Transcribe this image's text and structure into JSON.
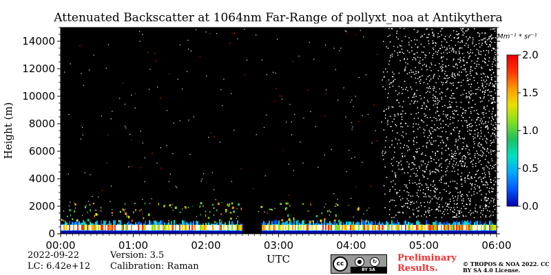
{
  "chart_data": {
    "type": "heatmap",
    "title": "Attenuated Backscatter at 1064nm Far-Range of pollyxt_noa at Antikythera",
    "xlabel": "UTC",
    "ylabel": "Height (m)",
    "x_ticks": [
      "00:00",
      "01:00",
      "02:00",
      "03:00",
      "04:00",
      "05:00",
      "06:00"
    ],
    "x_range_hours": [
      0,
      6
    ],
    "y_ticks": [
      0,
      2000,
      4000,
      6000,
      8000,
      10000,
      12000,
      14000
    ],
    "ylim": [
      0,
      15000
    ],
    "colorbar": {
      "unit": "Mm⁻¹ * sr⁻¹",
      "ticks": [
        "0.0",
        "0.5",
        "1.0",
        "1.5",
        "2.0"
      ],
      "range": [
        0,
        2.0
      ],
      "colormap": [
        "#0000aa",
        "#0055ff",
        "#00aaff",
        "#00e0c0",
        "#20c060",
        "#80e020",
        "#e8e000",
        "#ff9900",
        "#ff3300",
        "#ee0000"
      ]
    },
    "background_color": "#000000",
    "features": {
      "boundary_layer_top_m": 800,
      "cloud_band_m": [
        250,
        650
      ],
      "data_gap_hours": [
        2.5,
        2.75
      ],
      "noise_increases_after_hours": 4.4
    }
  },
  "footer": {
    "date": "2022-09-22",
    "lc": "LC: 6.42e+12",
    "version": "Version: 3.5",
    "calibration": "Calibration: Raman",
    "preliminary": "Preliminary Results.",
    "copyright": "© TROPOS & NOA 2022. CC BY SA 4.0 License.",
    "license_badge": {
      "cc": "cc",
      "strip": "BY SA"
    }
  }
}
